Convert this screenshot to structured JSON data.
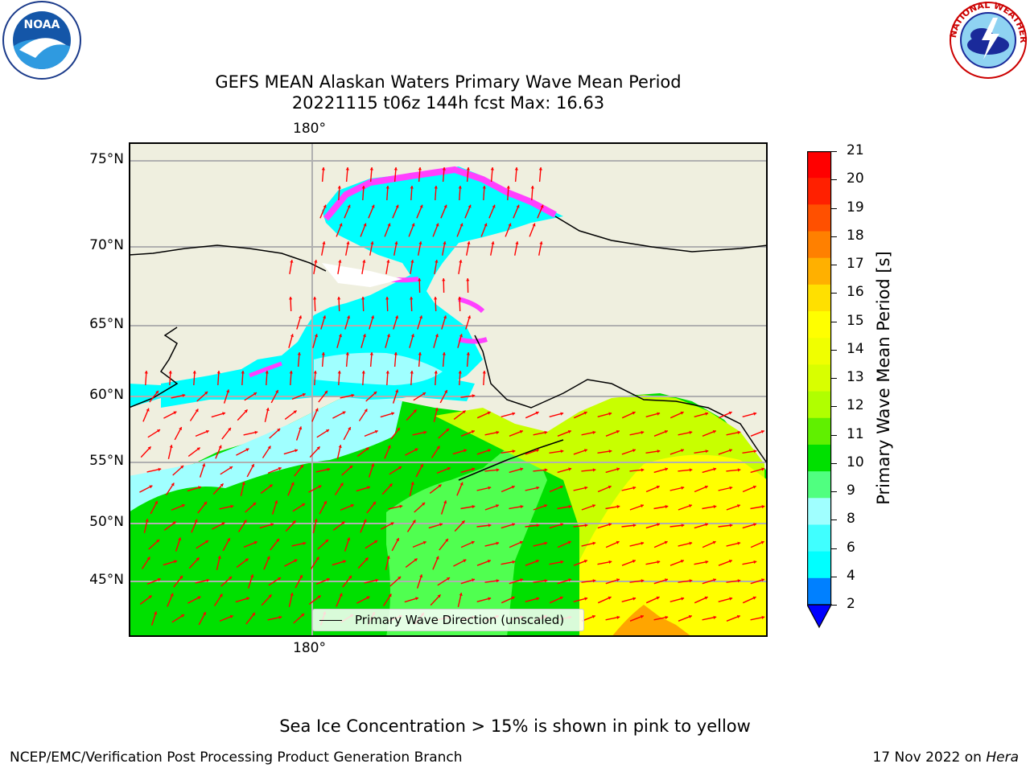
{
  "header": {
    "title_line1": "GEFS MEAN Alaskan Waters Primary Wave Mean Period",
    "title_line2": "20221115 t06z 144h fcst   Max: 16.63"
  },
  "logos": {
    "left": "NOAA",
    "right_ring_text": "NATIONAL WEATHER SERVICE"
  },
  "map": {
    "lon_label_top": "180°",
    "lon_label_bottom": "180°",
    "lat_labels": [
      "75°N",
      "70°N",
      "65°N",
      "60°N",
      "55°N",
      "50°N",
      "45°N"
    ],
    "legend_label": "Primary Wave Direction (unscaled)",
    "colors": {
      "land": "#efefdf",
      "water_low": "#00ffff",
      "water_mid": "#a0ffff",
      "green": "#00e000",
      "light_green": "#50ff50",
      "yellow_green": "#c8ff00",
      "yellow": "#ffff00",
      "orange": "#ffa500",
      "ice_pink": "#ff40ff",
      "arrow": "#ff0000"
    }
  },
  "colorbar": {
    "label": "Primary Wave Mean Period [s]",
    "ticks": [
      "21",
      "20",
      "19",
      "18",
      "17",
      "16",
      "15",
      "14",
      "13",
      "12",
      "11",
      "10",
      "9",
      "8",
      "6",
      "4",
      "2"
    ],
    "colors": [
      "#ff0000",
      "#ff2000",
      "#ff5000",
      "#ff8000",
      "#ffb000",
      "#ffe000",
      "#ffff00",
      "#f0ff00",
      "#d8ff00",
      "#b0ff00",
      "#60f000",
      "#00e000",
      "#50ff80",
      "#a0ffff",
      "#40ffff",
      "#00ffff",
      "#0080ff",
      "#0000ff"
    ]
  },
  "caption": "Sea Ice Concentration > 15% is shown in pink to yellow",
  "footer": {
    "left": "NCEP/EMC/Verification Post Processing Product Generation Branch",
    "date": "17 Nov 2022 on ",
    "machine": "Hera"
  }
}
